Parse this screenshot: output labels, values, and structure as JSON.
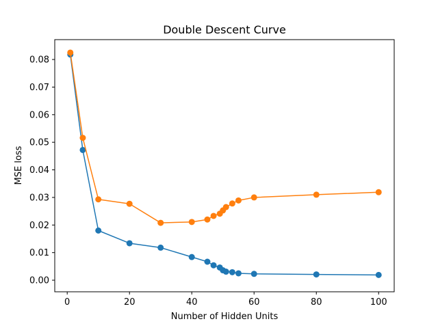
{
  "chart_data": {
    "type": "line",
    "title": "Double Descent Curve",
    "xlabel": "Number of Hidden Units",
    "ylabel": "MSE loss",
    "xlim": [
      -4,
      105
    ],
    "ylim": [
      -0.0042,
      0.0872
    ],
    "x_ticks": [
      0,
      20,
      40,
      60,
      80,
      100
    ],
    "y_ticks": [
      0.0,
      0.01,
      0.02,
      0.03,
      0.04,
      0.05,
      0.06,
      0.07,
      0.08
    ],
    "x_tick_labels": [
      "0",
      "20",
      "40",
      "60",
      "80",
      "100"
    ],
    "y_tick_labels": [
      "0.00",
      "0.01",
      "0.02",
      "0.03",
      "0.04",
      "0.05",
      "0.06",
      "0.07",
      "0.08"
    ],
    "grid": false,
    "legend": "none",
    "series": [
      {
        "color": "#1f77b4",
        "marker": "circle",
        "x": [
          1,
          5,
          10,
          20,
          30,
          40,
          45,
          47,
          49,
          50,
          51,
          53,
          55,
          60,
          80,
          100
        ],
        "y": [
          0.0818,
          0.0472,
          0.018,
          0.0134,
          0.0118,
          0.0084,
          0.0067,
          0.0054,
          0.0046,
          0.0036,
          0.0031,
          0.0029,
          0.0025,
          0.0023,
          0.0021,
          0.0019
        ]
      },
      {
        "color": "#ff7f0e",
        "marker": "circle",
        "x": [
          1,
          5,
          10,
          20,
          30,
          40,
          45,
          47,
          49,
          50,
          51,
          53,
          55,
          60,
          80,
          100
        ],
        "y": [
          0.0825,
          0.0516,
          0.0293,
          0.0277,
          0.0208,
          0.0211,
          0.022,
          0.0233,
          0.0241,
          0.0253,
          0.0265,
          0.0278,
          0.0289,
          0.03,
          0.031,
          0.0319
        ]
      }
    ]
  }
}
